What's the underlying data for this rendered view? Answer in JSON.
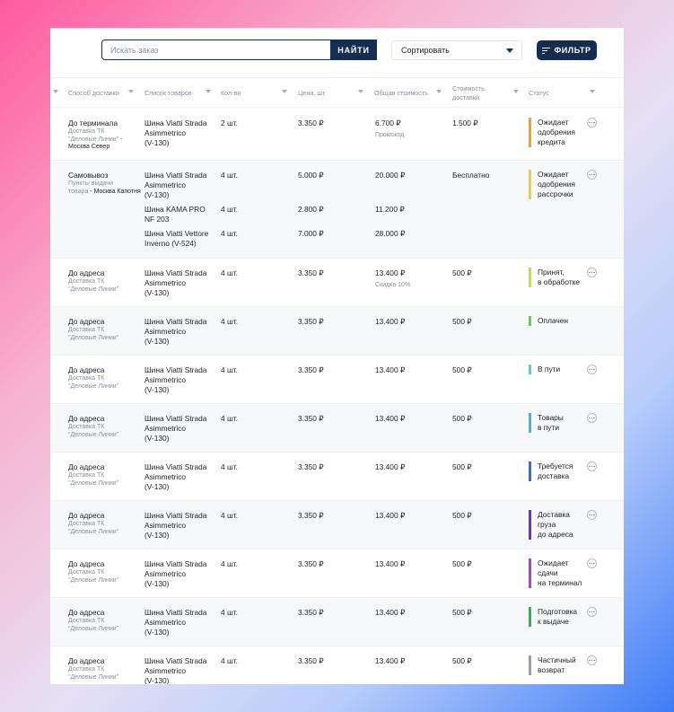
{
  "toolbar": {
    "search_placeholder": "Искать заказ",
    "search_button": "НАЙТИ",
    "sort_label": "Сортировать",
    "filter_button": "ФИЛЬТР"
  },
  "columns": {
    "delivery": "Способ доставки",
    "products": "Список товаров",
    "qty": "Кол-во",
    "price": "Цена, шт.",
    "total": "Общая стоимость",
    "delivery_cost_1": "Стоимость",
    "delivery_cost_2": "доставки",
    "status": "Статус"
  },
  "orders": [
    {
      "method": "До терминала",
      "sub1": "Доставка ТК",
      "sub2": "\"Деловые Линии\"",
      "sub3": " - Москва Север",
      "items": [
        {
          "name1": "Шина Viatti Strada",
          "name2": "Asimmetrico",
          "name3": "(V-130)",
          "qty": "2 шт.",
          "price": "3.350 ₽",
          "total": "6.700 ₽"
        }
      ],
      "note": "Промокод",
      "delivery": "1.500 ₽",
      "status_lines": [
        "Ожидает",
        "одобрения",
        "кредита"
      ],
      "status_color": "#f2a614"
    },
    {
      "method": "Самовывоз",
      "sub1": "Пункты выдачи",
      "sub2": "товара",
      "sub3": " - Москва Капотня",
      "items": [
        {
          "name1": "Шина Viatti Strada",
          "name2": "Asimmetrico",
          "name3": "(V-130)",
          "qty": "4 шт.",
          "price": "5.000 ₽",
          "total": "20.000 ₽"
        },
        {
          "name1": "Шина KAMA PRO",
          "name2": "NF 203",
          "name3": "",
          "qty": "4 шт.",
          "price": "2.800 ₽",
          "total": "11.200 ₽"
        },
        {
          "name1": "Шина Viatti Vettore",
          "name2": "Inverno (V-524)",
          "name3": "",
          "qty": "4 шт.",
          "price": "7.000 ₽",
          "total": "28.000 ₽"
        }
      ],
      "note": "",
      "delivery": "Бесплатно",
      "status_lines": [
        "Ожидает",
        "одобрения",
        "рассрочки"
      ],
      "status_color": "#f5cf2b"
    },
    {
      "method": "До адреса",
      "sub1": "Доставка ТК",
      "sub2": "\"Деловые Линии\"",
      "sub3": "",
      "items": [
        {
          "name1": "Шина Viatti Strada",
          "name2": "Asimmetrico",
          "name3": "(V-130)",
          "qty": "4 шт.",
          "price": "3.350 ₽",
          "total": "13.400 ₽"
        }
      ],
      "note": "Скидка 10%",
      "delivery": "500 ₽",
      "status_lines": [
        "Принят,",
        "в обработке"
      ],
      "status_color": "#c5e32d"
    },
    {
      "method": "До адреса",
      "sub1": "Доставка ТК",
      "sub2": "\"Деловые Линии\"",
      "sub3": "",
      "items": [
        {
          "name1": "Шина Viatti Strada",
          "name2": "Asimmetrico",
          "name3": "(V-130)",
          "qty": "4 шт.",
          "price": "3.350 ₽",
          "total": "13.400 ₽"
        }
      ],
      "note": "",
      "delivery": "500 ₽",
      "status_lines": [
        "Оплачен"
      ],
      "status_color": "#62d63a"
    },
    {
      "method": "До адреса",
      "sub1": "Доставка ТК",
      "sub2": "\"Деловые Линии\"",
      "sub3": "",
      "items": [
        {
          "name1": "Шина Viatti Strada",
          "name2": "Asimmetrico",
          "name3": "(V-130)",
          "qty": "4 шт.",
          "price": "3.350 ₽",
          "total": "13.400 ₽"
        }
      ],
      "note": "",
      "delivery": "500 ₽",
      "status_lines": [
        "В пути"
      ],
      "status_color": "#3fd9d6"
    },
    {
      "method": "До адреса",
      "sub1": "Доставка ТК",
      "sub2": "\"Деловые Линии\"",
      "sub3": "",
      "items": [
        {
          "name1": "Шина Viatti Strada",
          "name2": "Asimmetrico",
          "name3": "(V-130)",
          "qty": "4 шт.",
          "price": "3.350 ₽",
          "total": "13.400 ₽"
        }
      ],
      "note": "",
      "delivery": "500 ₽",
      "status_lines": [
        "Товары",
        "в пути"
      ],
      "status_color": "#3bb6f2"
    },
    {
      "method": "До адреса",
      "sub1": "Доставка ТК",
      "sub2": "\"Деловые Линии\"",
      "sub3": "",
      "items": [
        {
          "name1": "Шина Viatti Strada",
          "name2": "Asimmetrico",
          "name3": "(V-130)",
          "qty": "4 шт.",
          "price": "3.350 ₽",
          "total": "13.400 ₽"
        }
      ],
      "note": "",
      "delivery": "500 ₽",
      "status_lines": [
        "Требуется",
        "доставка"
      ],
      "status_color": "#2f6fe0"
    },
    {
      "method": "До адреса",
      "sub1": "Доставка ТК",
      "sub2": "\"Деловые Линии\"",
      "sub3": "",
      "items": [
        {
          "name1": "Шина Viatti Strada",
          "name2": "Asimmetrico",
          "name3": "(V-130)",
          "qty": "4 шт.",
          "price": "3.350 ₽",
          "total": "13.400 ₽"
        }
      ],
      "note": "",
      "delivery": "500 ₽",
      "status_lines": [
        "Доставка",
        "груза",
        "до адреса"
      ],
      "status_color": "#6a2fd6"
    },
    {
      "method": "До адреса",
      "sub1": "Доставка ТК",
      "sub2": "\"Деловые Линии\"",
      "sub3": "",
      "items": [
        {
          "name1": "Шина Viatti Strada",
          "name2": "Asimmetrico",
          "name3": "(V-130)",
          "qty": "4 шт.",
          "price": "3.350 ₽",
          "total": "13.400 ₽"
        }
      ],
      "note": "",
      "delivery": "500 ₽",
      "status_lines": [
        "Ожидает",
        "сдачи",
        "на терминал"
      ],
      "status_color": "#b23fd9"
    },
    {
      "method": "До адреса",
      "sub1": "Доставка ТК",
      "sub2": "\"Деловые Линии\"",
      "sub3": "",
      "items": [
        {
          "name1": "Шина Viatti Strada",
          "name2": "Asimmetrico",
          "name3": "(V-130)",
          "qty": "4 шт.",
          "price": "3.350 ₽",
          "total": "13.400 ₽"
        }
      ],
      "note": "",
      "delivery": "500 ₽",
      "status_lines": [
        "Подготовка",
        "к выдаче"
      ],
      "status_color": "#27b85a"
    },
    {
      "method": "До адреса",
      "sub1": "Доставка ТК",
      "sub2": "\"Деловые Линии\"",
      "sub3": "",
      "items": [
        {
          "name1": "Шина Viatti Strada",
          "name2": "Asimmetrico",
          "name3": "(V-130)",
          "qty": "4 шт.",
          "price": "3.350 ₽",
          "total": "13.400 ₽"
        }
      ],
      "note": "",
      "delivery": "500 ₽",
      "status_lines": [
        "Частичный",
        "возврат"
      ],
      "status_color": "#9a9ea6"
    }
  ]
}
